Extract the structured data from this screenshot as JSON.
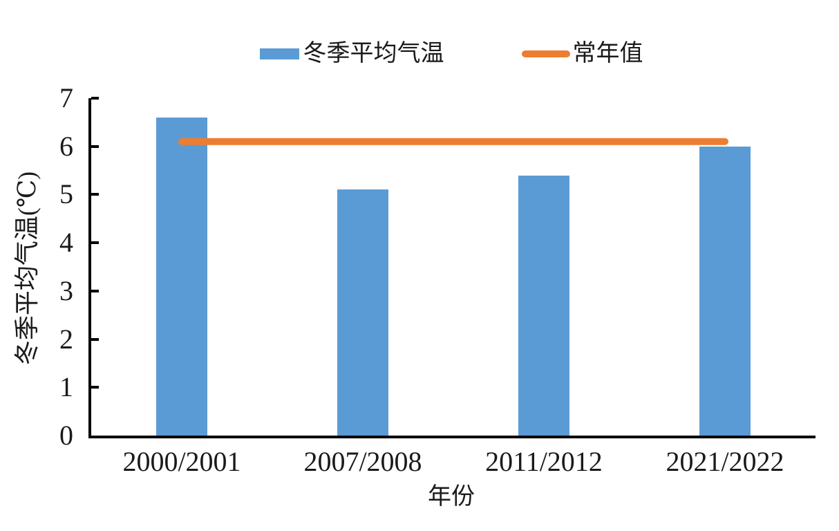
{
  "legend": {
    "bar_series_label": "冬季平均气温",
    "line_series_label": "常年值"
  },
  "axes": {
    "x_title": "年份",
    "y_title": "冬季平均气温(℃)",
    "y_tick_labels": [
      "0",
      "1",
      "2",
      "3",
      "4",
      "5",
      "6",
      "7"
    ],
    "x_tick_labels": [
      "2000/2001",
      "2007/2008",
      "2011/2012",
      "2021/2022"
    ]
  },
  "colors": {
    "bar": "#5B9BD5",
    "line": "#ED7D31",
    "axis": "#000000",
    "text": "#1a1a1a"
  },
  "chart_data": {
    "type": "bar",
    "title": "",
    "categories": [
      "2000/2001",
      "2007/2008",
      "2011/2012",
      "2021/2022"
    ],
    "series": [
      {
        "name": "冬季平均气温",
        "type": "bar",
        "color": "#5B9BD5",
        "values": [
          6.6,
          5.1,
          5.4,
          6.0
        ]
      },
      {
        "name": "常年值",
        "type": "line",
        "color": "#ED7D31",
        "values": [
          6.1,
          6.1,
          6.1,
          6.1
        ]
      }
    ],
    "xlabel": "年份",
    "ylabel": "冬季平均气温(℃)",
    "ylim": [
      0,
      7
    ],
    "yticks": [
      0,
      1,
      2,
      3,
      4,
      5,
      6,
      7
    ],
    "grid": false,
    "legend_position": "top"
  }
}
